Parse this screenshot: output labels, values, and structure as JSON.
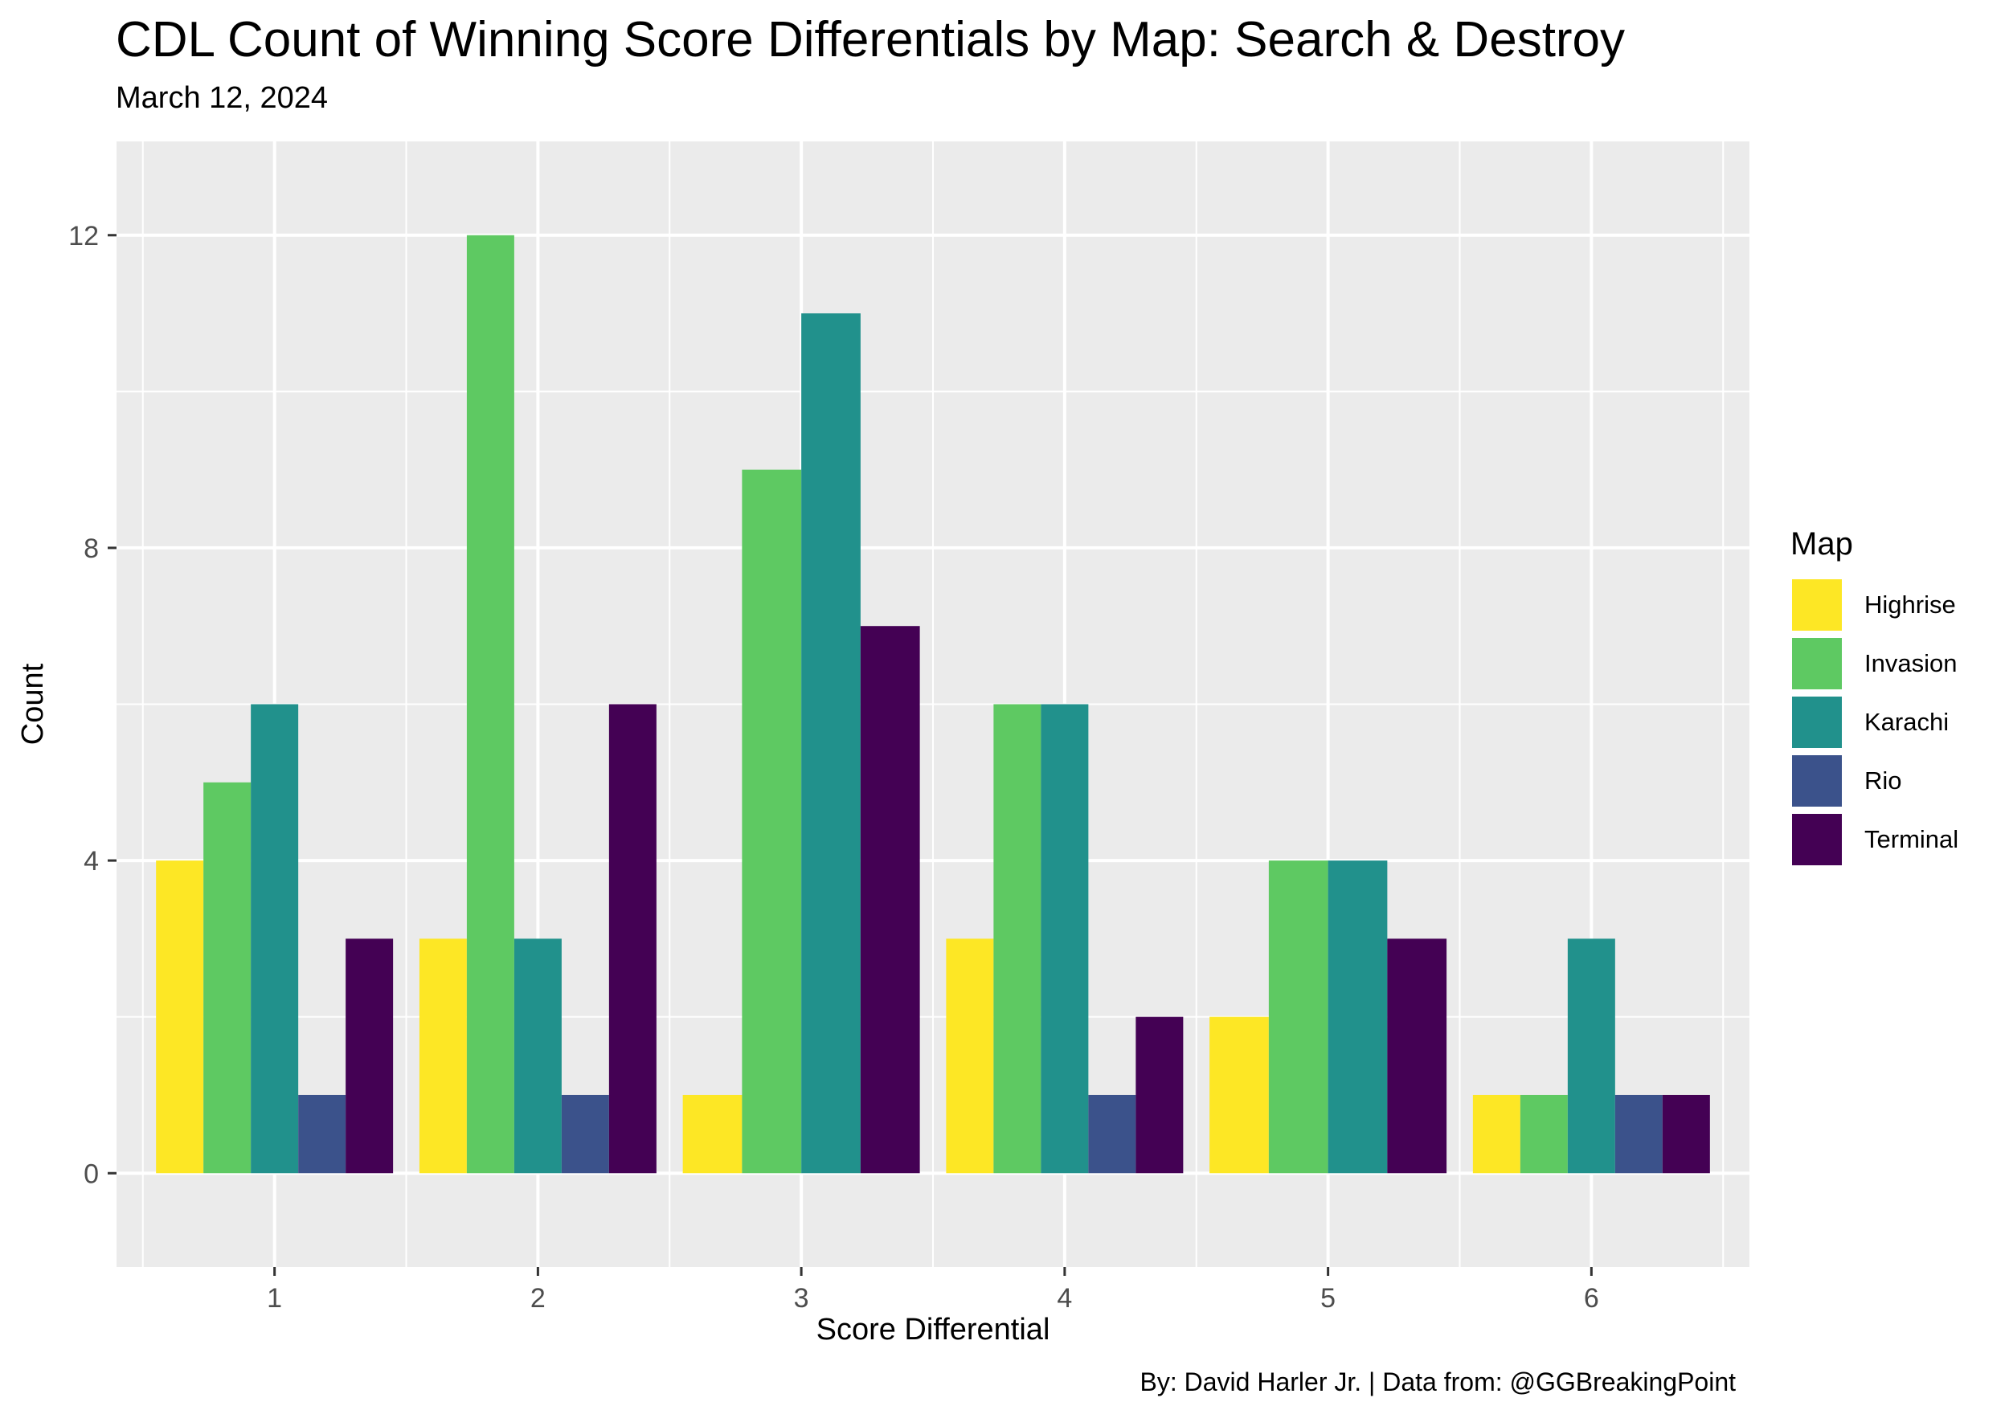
{
  "title": "CDL Count of Winning Score Differentials by Map: Search & Destroy",
  "subtitle": "March 12, 2024",
  "caption": "By: David Harler Jr. | Data from: @GGBreakingPoint",
  "colors": {
    "panel_background": "#EBEBEB",
    "grid": "#FFFFFF"
  },
  "legend": {
    "title": "Map",
    "items": [
      {
        "label": "Highrise",
        "color": "#FDE725"
      },
      {
        "label": "Invasion",
        "color": "#5EC962"
      },
      {
        "label": "Karachi",
        "color": "#21918C"
      },
      {
        "label": "Rio",
        "color": "#3B528B"
      },
      {
        "label": "Terminal",
        "color": "#440154"
      }
    ]
  },
  "chart_data": {
    "type": "bar",
    "grouping": "dodge",
    "xlabel": "Score Differential",
    "ylabel": "Count",
    "ylim": [
      -1.2,
      13.2
    ],
    "y_ticks": [
      0,
      4,
      8,
      12
    ],
    "x_ticks": [
      "1",
      "2",
      "3",
      "4",
      "5",
      "6"
    ],
    "grid": true,
    "legend_position": "right",
    "groups": [
      {
        "x": "1",
        "bars": [
          {
            "series": "Highrise",
            "value": 4
          },
          {
            "series": "Invasion",
            "value": 5
          },
          {
            "series": "Karachi",
            "value": 6
          },
          {
            "series": "Rio",
            "value": 1
          },
          {
            "series": "Terminal",
            "value": 3
          }
        ]
      },
      {
        "x": "2",
        "bars": [
          {
            "series": "Highrise",
            "value": 3
          },
          {
            "series": "Invasion",
            "value": 12
          },
          {
            "series": "Karachi",
            "value": 3
          },
          {
            "series": "Rio",
            "value": 1
          },
          {
            "series": "Terminal",
            "value": 6
          }
        ]
      },
      {
        "x": "3",
        "bars": [
          {
            "series": "Highrise",
            "value": 1
          },
          {
            "series": "Invasion",
            "value": 9
          },
          {
            "series": "Karachi",
            "value": 11
          },
          {
            "series": "Terminal",
            "value": 7
          }
        ]
      },
      {
        "x": "4",
        "bars": [
          {
            "series": "Highrise",
            "value": 3
          },
          {
            "series": "Invasion",
            "value": 6
          },
          {
            "series": "Karachi",
            "value": 6
          },
          {
            "series": "Rio",
            "value": 1
          },
          {
            "series": "Terminal",
            "value": 2
          }
        ]
      },
      {
        "x": "5",
        "bars": [
          {
            "series": "Highrise",
            "value": 2
          },
          {
            "series": "Invasion",
            "value": 4
          },
          {
            "series": "Karachi",
            "value": 4
          },
          {
            "series": "Terminal",
            "value": 3
          }
        ]
      },
      {
        "x": "6",
        "bars": [
          {
            "series": "Highrise",
            "value": 1
          },
          {
            "series": "Invasion",
            "value": 1
          },
          {
            "series": "Karachi",
            "value": 3
          },
          {
            "series": "Rio",
            "value": 1
          },
          {
            "series": "Terminal",
            "value": 1
          }
        ]
      }
    ]
  }
}
